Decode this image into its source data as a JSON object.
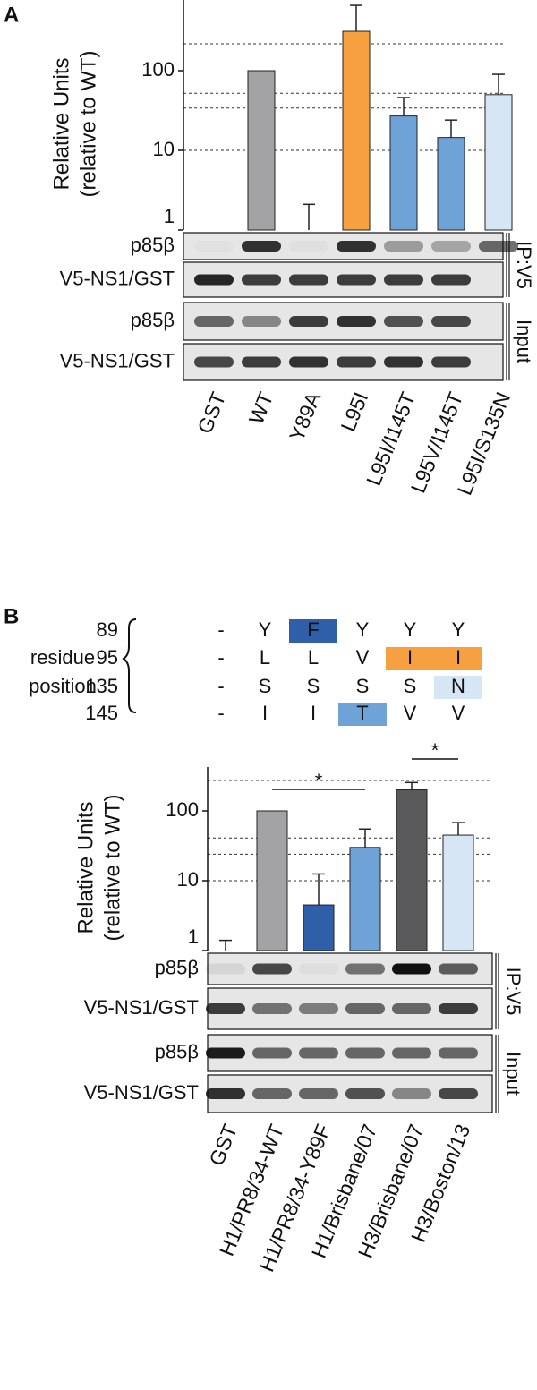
{
  "chart_data": [
    {
      "type": "bar",
      "panel_label": "A",
      "log_scale": true,
      "y_label": [
        "Relative Units",
        "(relative to WT)"
      ],
      "categories": [
        "GST",
        "WT",
        "Y89A",
        "L95I",
        "L95I/I145T",
        "L95V/I145T",
        "L95I/S135N"
      ],
      "values": [
        null,
        100,
        1,
        312,
        27,
        14.5,
        50
      ],
      "errors": [
        null,
        null,
        1.1,
        348,
        19,
        9.5,
        40
      ],
      "colors": [
        null,
        "#a3a3a5",
        null,
        "#f7a040",
        "#6fa3d8",
        "#6fa3d8",
        "#d6e6f5"
      ],
      "ylim": [
        1,
        772
      ],
      "yticks": [
        1,
        10,
        100
      ],
      "reference_lines": [
        10,
        34,
        52,
        217
      ],
      "blot_rows": [
        "p85β",
        "V5-NS1/GST",
        "p85β",
        "V5-NS1/GST"
      ],
      "blot_groups": [
        "IP:V5",
        "Input"
      ]
    },
    {
      "type": "bar",
      "panel_label": "B",
      "log_scale": true,
      "y_label": [
        "Relative Units",
        "(relative to WT)"
      ],
      "categories": [
        "GST",
        "H1/PR8/34-WT",
        "H1/PR8/34-Y89F",
        "H1/Brisbane/07",
        "H3/Brisbane/07",
        "H3/Boston/13"
      ],
      "values": [
        1,
        100,
        4.5,
        30,
        200,
        45
      ],
      "errors": [
        0.4,
        null,
        8,
        25,
        55,
        23
      ],
      "colors": [
        null,
        "#a3a3a5",
        "#2f5fa8",
        "#6fa3d8",
        "#5a5a5c",
        "#d6e6f5"
      ],
      "ylim": [
        1,
        425
      ],
      "yticks": [
        1,
        10,
        100
      ],
      "reference_lines": [
        10,
        24,
        41,
        273
      ],
      "significance": [
        {
          "label": "*",
          "between": [
            "H1/PR8/34-WT",
            "H1/Brisbane/07"
          ]
        },
        {
          "label": "*",
          "between": [
            "H3/Brisbane/07",
            "H3/Boston/13"
          ]
        }
      ],
      "blot_rows": [
        "p85β",
        "V5-NS1/GST",
        "p85β",
        "V5-NS1/GST"
      ],
      "blot_groups": [
        "IP:V5",
        "Input"
      ]
    }
  ],
  "residue_table": {
    "row_header": [
      "residue",
      "position"
    ],
    "rows": [
      {
        "position": "89",
        "cells": [
          "-",
          "Y",
          "F",
          "Y",
          "Y",
          "Y"
        ],
        "colors": [
          null,
          null,
          "#2f5fa8",
          null,
          null,
          null
        ]
      },
      {
        "position": "95",
        "cells": [
          "-",
          "L",
          "L",
          "V",
          "I",
          "I"
        ],
        "colors": [
          null,
          null,
          null,
          null,
          "#f7a040",
          "#f7a040"
        ]
      },
      {
        "position": "135",
        "cells": [
          "-",
          "S",
          "S",
          "S",
          "S",
          "N"
        ],
        "colors": [
          null,
          null,
          null,
          null,
          null,
          "#d6e6f5"
        ]
      },
      {
        "position": "145",
        "cells": [
          "-",
          "I",
          "I",
          "T",
          "V",
          "V"
        ],
        "colors": [
          null,
          null,
          null,
          "#6fa3d8",
          null,
          null
        ]
      }
    ]
  }
}
